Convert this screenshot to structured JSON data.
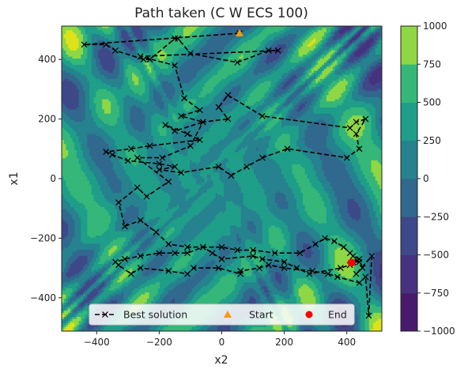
{
  "chart_data": {
    "type": "contour-path",
    "title": "Path taken (C W ECS 100)",
    "xlabel": "x2",
    "ylabel": "x1",
    "xlim": [
      -512,
      512
    ],
    "ylim": [
      -512,
      512
    ],
    "x_ticks": [
      -400,
      -200,
      0,
      200,
      400
    ],
    "y_ticks": [
      -400,
      -200,
      0,
      200,
      400
    ],
    "colorbar": {
      "levels": [
        -1000,
        -750,
        -500,
        -250,
        0,
        250,
        500,
        750,
        1000
      ],
      "tick_labels": [
        "−1000",
        "−750",
        "−500",
        "−250",
        "0",
        "250",
        "500",
        "750",
        "1000"
      ],
      "colors": [
        "#481a6c",
        "#46327e",
        "#3e4989",
        "#31688e",
        "#26828e",
        "#1f9e89",
        "#35b779",
        "#6ece58",
        "#b5de2b",
        "#fde725"
      ],
      "band_colors": [
        "#46327e",
        "#3e4989",
        "#31688e",
        "#26828e",
        "#1f9e89",
        "#35b779",
        "#8fd744",
        "#dde318"
      ]
    },
    "series": [
      {
        "name": "Best solution",
        "style": "dashed",
        "marker": "x",
        "color": "#000000",
        "points": [
          [
            57,
            488
          ],
          [
            -440,
            450
          ],
          [
            -370,
            450
          ],
          [
            -340,
            430
          ],
          [
            -250,
            400
          ],
          [
            -230,
            400
          ],
          [
            -150,
            470
          ],
          [
            -140,
            470
          ],
          [
            -100,
            420
          ],
          [
            50,
            390
          ],
          [
            150,
            430
          ],
          [
            180,
            430
          ],
          [
            -260,
            410
          ],
          [
            -150,
            380
          ],
          [
            -120,
            270
          ],
          [
            -70,
            230
          ],
          [
            -130,
            210
          ],
          [
            -60,
            190
          ],
          [
            -150,
            160
          ],
          [
            -180,
            180
          ],
          [
            -110,
            150
          ],
          [
            -70,
            130
          ],
          [
            -230,
            110
          ],
          [
            -290,
            100
          ],
          [
            -370,
            90
          ],
          [
            -350,
            80
          ],
          [
            -300,
            60
          ],
          [
            -200,
            50
          ],
          [
            -150,
            40
          ],
          [
            -200,
            30
          ],
          [
            -130,
            20
          ],
          [
            -10,
            40
          ],
          [
            30,
            10
          ],
          [
            80,
            40
          ],
          [
            130,
            70
          ],
          [
            210,
            100
          ],
          [
            400,
            70
          ],
          [
            440,
            100
          ],
          [
            430,
            150
          ],
          [
            460,
            200
          ],
          [
            430,
            190
          ],
          [
            410,
            170
          ],
          [
            130,
            210
          ],
          [
            20,
            280
          ],
          [
            -10,
            240
          ],
          [
            20,
            200
          ],
          [
            -60,
            190
          ],
          [
            -100,
            110
          ],
          [
            -190,
            70
          ],
          [
            -270,
            70
          ],
          [
            -170,
            -10
          ],
          [
            -240,
            -60
          ],
          [
            -270,
            -30
          ],
          [
            -330,
            -80
          ],
          [
            -310,
            -160
          ],
          [
            -260,
            -140
          ],
          [
            -210,
            -180
          ],
          [
            -170,
            -220
          ],
          [
            -110,
            -230
          ],
          [
            -60,
            -230
          ],
          [
            -30,
            -250
          ],
          [
            0,
            -270
          ],
          [
            100,
            -260
          ],
          [
            130,
            -270
          ],
          [
            200,
            -280
          ],
          [
            240,
            -300
          ],
          [
            280,
            -320
          ],
          [
            380,
            -300
          ],
          [
            410,
            -290
          ],
          [
            420,
            -280
          ],
          [
            440,
            -280
          ],
          [
            450,
            -300
          ],
          [
            430,
            -320
          ],
          [
            480,
            -260
          ],
          [
            470,
            -460
          ],
          [
            460,
            -330
          ],
          [
            440,
            -350
          ],
          [
            370,
            -330
          ],
          [
            340,
            -320
          ],
          [
            290,
            -310
          ],
          [
            200,
            -300
          ],
          [
            150,
            -290
          ],
          [
            120,
            -300
          ],
          [
            60,
            -310
          ],
          [
            60,
            -320
          ],
          [
            -10,
            -300
          ],
          [
            -90,
            -300
          ],
          [
            -110,
            -320
          ],
          [
            -170,
            -310
          ],
          [
            -260,
            -300
          ],
          [
            -290,
            -320
          ],
          [
            -330,
            -290
          ],
          [
            -340,
            -280
          ],
          [
            -310,
            -270
          ],
          [
            -260,
            -260
          ],
          [
            -200,
            -250
          ],
          [
            -150,
            -250
          ],
          [
            -110,
            -250
          ],
          [
            -60,
            -230
          ],
          [
            0,
            -230
          ],
          [
            50,
            -240
          ],
          [
            100,
            -240
          ],
          [
            170,
            -250
          ],
          [
            250,
            -250
          ],
          [
            300,
            -220
          ],
          [
            330,
            -200
          ],
          [
            360,
            -210
          ],
          [
            390,
            -230
          ],
          [
            410,
            -250
          ],
          [
            420,
            -260
          ],
          [
            440,
            -270
          ],
          [
            420,
            -280
          ]
        ]
      }
    ],
    "start": {
      "label": "Start",
      "point": [
        57,
        488
      ],
      "color": "#ff9900",
      "marker": "triangle"
    },
    "end": {
      "label": "End",
      "point": [
        415,
        -282
      ],
      "color": "#ff0000",
      "marker": "circle"
    },
    "legend": {
      "placement": "lower-center",
      "entries": [
        "Best solution",
        "Start",
        "End"
      ]
    }
  }
}
